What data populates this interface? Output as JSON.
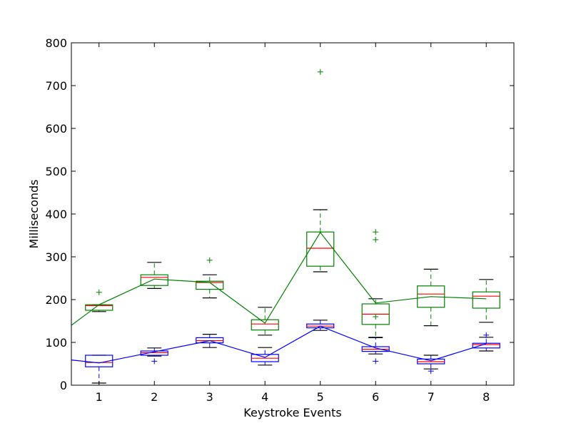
{
  "chart_data": {
    "type": "box",
    "xlabel": "Keystroke Events",
    "ylabel": "Milliseconds",
    "xlim": [
      0.5,
      8.5
    ],
    "ylim": [
      0,
      800
    ],
    "x_ticks": [
      "1",
      "2",
      "3",
      "4",
      "5",
      "6",
      "7",
      "8"
    ],
    "y_ticks": [
      "0",
      "100",
      "200",
      "300",
      "400",
      "500",
      "600",
      "700",
      "800"
    ],
    "grid": false,
    "colors": {
      "median": "#ff0000",
      "series_a": "#0000ff",
      "series_b": "#008000",
      "whisker": "#000000"
    },
    "series": [
      {
        "color": "#008000",
        "line_x": [
          0.5,
          1,
          2,
          3,
          4,
          5,
          6,
          7,
          8
        ],
        "line_y": [
          140,
          188,
          248,
          240,
          145,
          357,
          192,
          207,
          202
        ],
        "boxes": [
          {
            "x": 1,
            "whislo": 172,
            "q1": 175,
            "med": 186,
            "q3": 188,
            "whishi": 188,
            "fliers": [
              217
            ]
          },
          {
            "x": 2,
            "whislo": 226,
            "q1": 233,
            "med": 252,
            "q3": 258,
            "whishi": 287,
            "fliers": []
          },
          {
            "x": 3,
            "whislo": 204,
            "q1": 224,
            "med": 240,
            "q3": 243,
            "whishi": 258,
            "fliers": [
              292
            ]
          },
          {
            "x": 4,
            "whislo": 117,
            "q1": 129,
            "med": 143,
            "q3": 153,
            "whishi": 182,
            "fliers": []
          },
          {
            "x": 5,
            "whislo": 265,
            "q1": 278,
            "med": 320,
            "q3": 358,
            "whishi": 410,
            "fliers": [
              732
            ]
          },
          {
            "x": 6,
            "whislo": 112,
            "q1": 142,
            "med": 166,
            "q3": 190,
            "whishi": 202,
            "fliers": [
              358,
              340,
              160
            ]
          },
          {
            "x": 7,
            "whislo": 139,
            "q1": 182,
            "med": 213,
            "q3": 232,
            "whishi": 271,
            "fliers": []
          },
          {
            "x": 8,
            "whislo": 147,
            "q1": 180,
            "med": 208,
            "q3": 218,
            "whishi": 247,
            "fliers": []
          }
        ]
      },
      {
        "color": "#0000ff",
        "line_x": [
          0.5,
          1,
          2,
          3,
          4,
          5,
          6,
          7,
          8
        ],
        "line_y": [
          59,
          52,
          78,
          104,
          65,
          138,
          87,
          57,
          97
        ],
        "boxes": [
          {
            "x": 1,
            "whislo": 5,
            "q1": 43,
            "med": 53,
            "q3": 70,
            "whishi": 70,
            "fliers": []
          },
          {
            "x": 2,
            "whislo": 68,
            "q1": 70,
            "med": 76,
            "q3": 80,
            "whishi": 87,
            "fliers": [
              56
            ]
          },
          {
            "x": 3,
            "whislo": 88,
            "q1": 99,
            "med": 104,
            "q3": 111,
            "whishi": 119,
            "fliers": []
          },
          {
            "x": 4,
            "whislo": 47,
            "q1": 55,
            "med": 63,
            "q3": 72,
            "whishi": 88,
            "fliers": []
          },
          {
            "x": 5,
            "whislo": 128,
            "q1": 134,
            "med": 138,
            "q3": 143,
            "whishi": 152,
            "fliers": []
          },
          {
            "x": 6,
            "whislo": 73,
            "q1": 79,
            "med": 84,
            "q3": 90,
            "whishi": 111,
            "fliers": [
              56
            ]
          },
          {
            "x": 7,
            "whislo": 38,
            "q1": 50,
            "med": 55,
            "q3": 61,
            "whishi": 70,
            "fliers": [
              33
            ]
          },
          {
            "x": 8,
            "whislo": 80,
            "q1": 87,
            "med": 95,
            "q3": 98,
            "whishi": 112,
            "fliers": [
              117
            ]
          }
        ]
      }
    ]
  }
}
